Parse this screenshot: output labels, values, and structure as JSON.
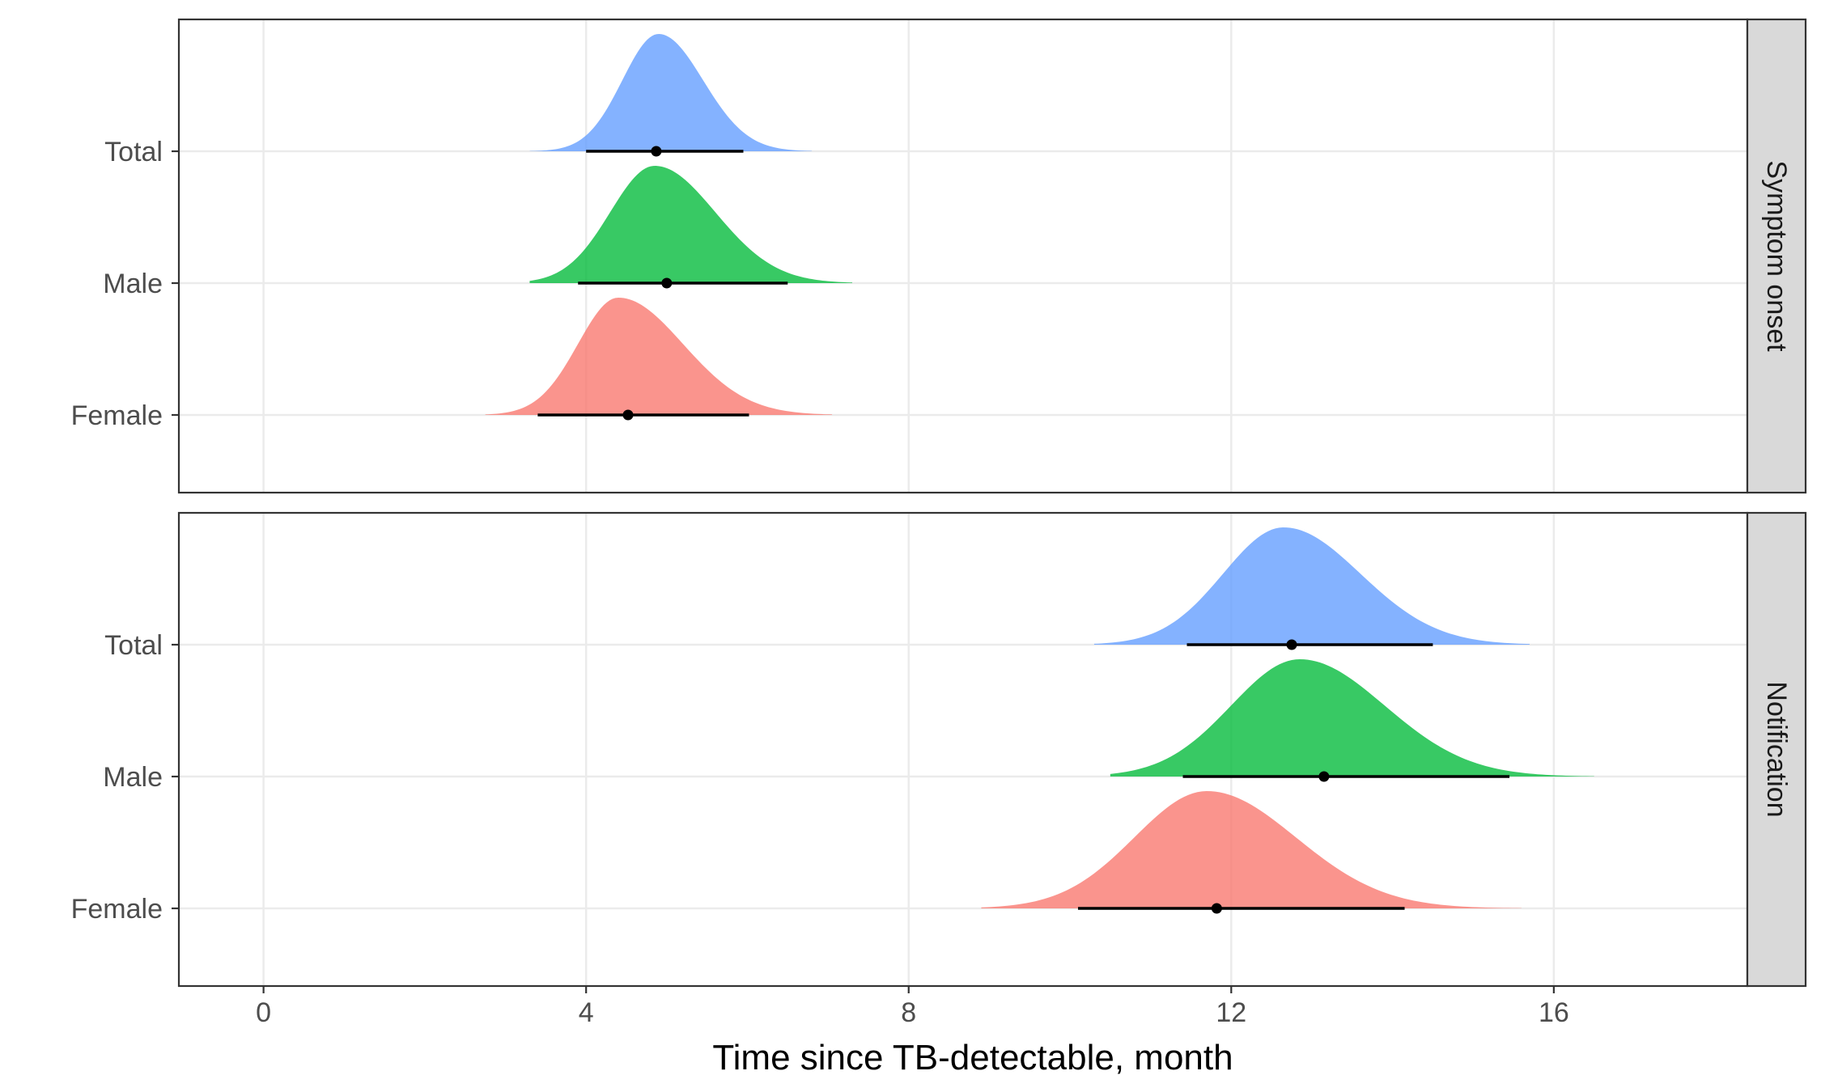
{
  "chart_data": {
    "type": "density-ridge",
    "xlabel": "Time since TB-detectable, month",
    "xlim": [
      -1.05,
      18.4
    ],
    "x_ticks": [
      0,
      4,
      8,
      12,
      16
    ],
    "x_tick_labels": [
      "0",
      "4",
      "8",
      "12",
      "16"
    ],
    "grid": true,
    "categories": [
      "Total",
      "Male",
      "Female"
    ],
    "colors": {
      "Total": "#619CFF",
      "Male": "#00BA38",
      "Female": "#F8766D"
    },
    "panels": [
      {
        "strip": "Symptom onset",
        "groups": [
          {
            "category": "Total",
            "min": 3.3,
            "max": 6.8,
            "mode": 4.9,
            "sd_left": 0.45,
            "sd_right": 0.55,
            "median": 4.87,
            "lower": 4.0,
            "upper": 5.95
          },
          {
            "category": "Male",
            "min": 3.3,
            "max": 7.3,
            "mode": 4.85,
            "sd_left": 0.55,
            "sd_right": 0.75,
            "median": 5.0,
            "lower": 3.9,
            "upper": 6.5
          },
          {
            "category": "Female",
            "min": 2.75,
            "max": 7.05,
            "mode": 4.4,
            "sd_left": 0.5,
            "sd_right": 0.8,
            "median": 4.52,
            "lower": 3.4,
            "upper": 6.02
          }
        ]
      },
      {
        "strip": "Notification",
        "groups": [
          {
            "category": "Total",
            "min": 10.3,
            "max": 15.7,
            "mode": 12.65,
            "sd_left": 0.75,
            "sd_right": 0.95,
            "median": 12.75,
            "lower": 11.45,
            "upper": 14.5
          },
          {
            "category": "Male",
            "min": 10.5,
            "max": 16.5,
            "mode": 12.85,
            "sd_left": 0.85,
            "sd_right": 1.05,
            "median": 13.15,
            "lower": 11.4,
            "upper": 15.45
          },
          {
            "category": "Female",
            "min": 8.9,
            "max": 15.6,
            "mode": 11.7,
            "sd_left": 0.9,
            "sd_right": 1.1,
            "median": 11.82,
            "lower": 10.1,
            "upper": 14.15
          }
        ]
      }
    ]
  }
}
